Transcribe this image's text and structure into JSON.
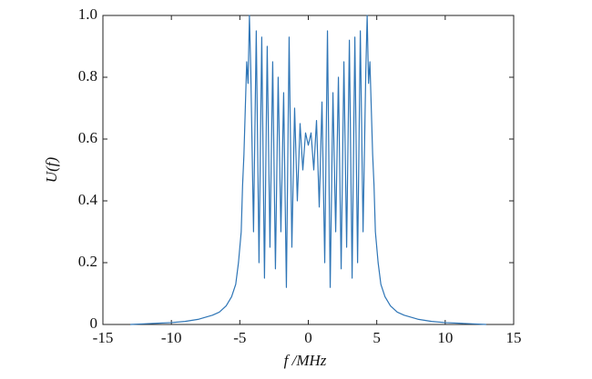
{
  "chart_data": {
    "type": "line",
    "x_label": "f /MHz",
    "y_label": "U(f)",
    "xlim": [
      -15,
      15
    ],
    "ylim": [
      0,
      1
    ],
    "xticks": [
      -15,
      -10,
      -5,
      0,
      5,
      10,
      15
    ],
    "yticks": [
      0,
      0.2,
      0.4,
      0.6,
      0.8,
      {
        "value": 1,
        "label": "1.0"
      }
    ],
    "x": [
      -13,
      -12,
      -11,
      -10,
      -9,
      -8,
      -7,
      -6.5,
      -6,
      -5.6,
      -5.3,
      -5.1,
      -4.9,
      -4.8,
      -4.7,
      -4.6,
      -4.5,
      -4.4,
      -4.3,
      -4.2,
      -4.0,
      -3.8,
      -3.6,
      -3.4,
      -3.2,
      -3.0,
      -2.8,
      -2.6,
      -2.4,
      -2.2,
      -2.0,
      -1.8,
      -1.6,
      -1.4,
      -1.2,
      -1.0,
      -0.8,
      -0.6,
      -0.4,
      -0.2,
      0,
      0.2,
      0.4,
      0.6,
      0.8,
      1.0,
      1.2,
      1.4,
      1.6,
      1.8,
      2.0,
      2.2,
      2.4,
      2.6,
      2.8,
      3.0,
      3.2,
      3.4,
      3.6,
      3.8,
      4.0,
      4.2,
      4.3,
      4.4,
      4.5,
      4.6,
      4.7,
      4.8,
      4.9,
      5.1,
      5.3,
      5.6,
      6,
      6.5,
      7,
      8,
      9,
      10,
      11,
      12,
      13
    ],
    "series": [
      {
        "color": "#2e75b6",
        "values": [
          0,
          0.002,
          0.004,
          0.006,
          0.01,
          0.017,
          0.03,
          0.04,
          0.06,
          0.09,
          0.13,
          0.2,
          0.3,
          0.45,
          0.55,
          0.7,
          0.85,
          0.78,
          1.0,
          0.82,
          0.3,
          0.95,
          0.2,
          0.93,
          0.15,
          0.9,
          0.25,
          0.85,
          0.18,
          0.8,
          0.3,
          0.75,
          0.12,
          0.93,
          0.25,
          0.7,
          0.4,
          0.65,
          0.5,
          0.62,
          0.58,
          0.62,
          0.5,
          0.66,
          0.38,
          0.72,
          0.2,
          0.95,
          0.12,
          0.75,
          0.3,
          0.8,
          0.18,
          0.85,
          0.25,
          0.92,
          0.15,
          0.93,
          0.2,
          0.95,
          0.3,
          0.82,
          1.0,
          0.78,
          0.85,
          0.7,
          0.55,
          0.45,
          0.3,
          0.2,
          0.13,
          0.09,
          0.06,
          0.04,
          0.03,
          0.017,
          0.01,
          0.006,
          0.004,
          0.002,
          0
        ]
      }
    ]
  }
}
